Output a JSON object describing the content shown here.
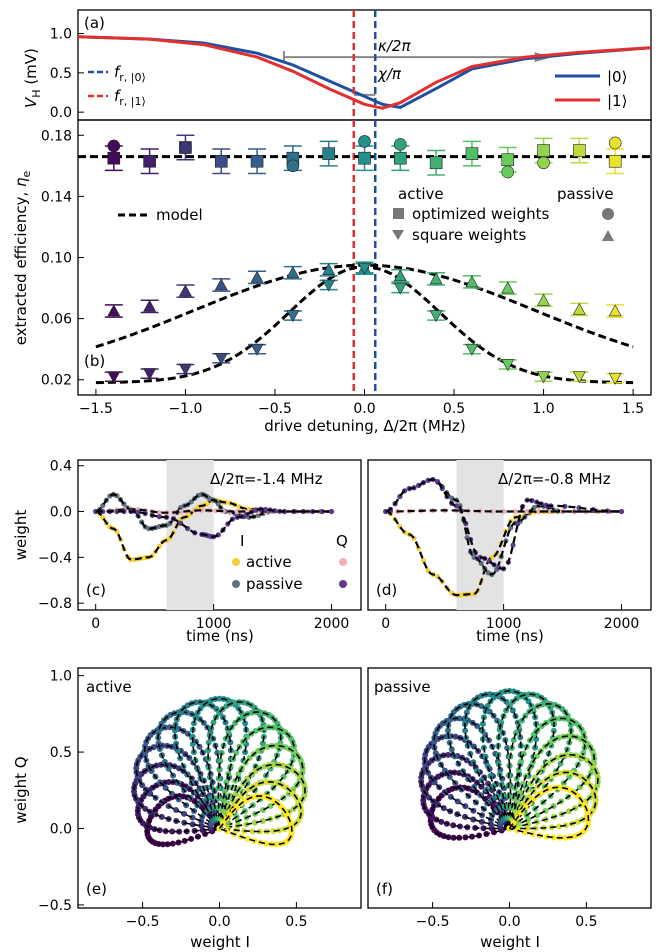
{
  "panels": {
    "a": {
      "letter": "(a)",
      "ylabel": "V_H (mV)",
      "yticks": [
        "0.0",
        "0.5",
        "1.0"
      ],
      "annotations": {
        "kappa": "κ/2π",
        "chi": "χ/π"
      },
      "legend_left": [
        "f_r,|0⟩",
        "f_r,|1⟩"
      ],
      "legend_right": [
        "|0⟩",
        "|1⟩"
      ]
    },
    "b": {
      "letter": "(b)",
      "ylabel": "extracted efficiency, η_e",
      "yticks": [
        "0.02",
        "0.06",
        "0.10",
        "0.14",
        "0.18"
      ],
      "xticks": [
        "−1.5",
        "−1.0",
        "−0.5",
        "0.0",
        "0.5",
        "1.0",
        "1.5"
      ],
      "xlabel": "drive detuning, Δ/2π (MHz)",
      "legend": {
        "model": "model",
        "active": "active",
        "passive": "passive",
        "optimized": "optimized weights",
        "square": "square weights"
      }
    },
    "c": {
      "letter": "(c)",
      "title": "Δ/2π=-1.4 MHz",
      "ylabel": "weight",
      "yticks": [
        "0.4",
        "0.0",
        "−0.4",
        "−0.8"
      ],
      "xticks": [
        "0",
        "1000",
        "2000"
      ],
      "xlabel": "time (ns)",
      "legend": {
        "I": "I",
        "Q": "Q",
        "active": "active",
        "passive": "passive"
      }
    },
    "d": {
      "letter": "(d)",
      "title": "Δ/2π=-0.8 MHz",
      "xticks": [
        "0",
        "1000",
        "2000"
      ],
      "xlabel": "time (ns)"
    },
    "e": {
      "letter": "(e)",
      "title": "active",
      "ylabel": "weight Q",
      "yticks": [
        "1.0",
        "0.5",
        "0.0",
        "−0.5"
      ],
      "xticks": [
        "−0.5",
        "0.0",
        "0.5"
      ],
      "xlabel": "weight I"
    },
    "f": {
      "letter": "(f)",
      "title": "passive",
      "xticks": [
        "−0.5",
        "0.0",
        "0.5"
      ],
      "xlabel": "weight I"
    }
  },
  "colors": {
    "blue": "#1f4fa0",
    "red": "#e03030",
    "grey": "#888888"
  },
  "chart_data": [
    {
      "id": "a",
      "type": "line",
      "xlim": [
        -1.6,
        1.6
      ],
      "ylim": [
        -0.1,
        1.3
      ],
      "vlines": [
        {
          "series": "f_r,|0⟩",
          "x": 0.06,
          "color": "#1f4fa0"
        },
        {
          "series": "f_r,|1⟩",
          "x": -0.06,
          "color": "#e03030"
        }
      ],
      "series": [
        {
          "name": "|0⟩",
          "color": "#1f4fa0",
          "x": [
            -1.6,
            -1.2,
            -0.9,
            -0.6,
            -0.4,
            -0.2,
            0.0,
            0.1,
            0.2,
            0.4,
            0.6,
            0.9,
            1.2,
            1.6
          ],
          "y": [
            0.96,
            0.93,
            0.88,
            0.75,
            0.6,
            0.4,
            0.2,
            0.1,
            0.06,
            0.3,
            0.55,
            0.68,
            0.75,
            0.82
          ]
        },
        {
          "name": "|1⟩",
          "color": "#e03030",
          "x": [
            -1.6,
            -1.2,
            -0.9,
            -0.6,
            -0.4,
            -0.2,
            0.0,
            0.1,
            0.2,
            0.4,
            0.6,
            0.9,
            1.2,
            1.6
          ],
          "y": [
            0.96,
            0.93,
            0.86,
            0.7,
            0.52,
            0.3,
            0.1,
            0.05,
            0.12,
            0.38,
            0.58,
            0.7,
            0.76,
            0.82
          ]
        }
      ]
    },
    {
      "id": "b",
      "type": "scatter",
      "xlim": [
        -1.6,
        1.6
      ],
      "ylim": [
        0.01,
        0.19
      ],
      "model_level": 0.166,
      "optimized_active": {
        "x": [
          -1.4,
          -1.2,
          -1.0,
          -0.8,
          -0.6,
          -0.4,
          -0.2,
          0.0,
          0.2,
          0.4,
          0.6,
          0.8,
          1.0,
          1.2,
          1.4
        ],
        "y": [
          0.165,
          0.163,
          0.172,
          0.163,
          0.163,
          0.165,
          0.168,
          0.165,
          0.165,
          0.162,
          0.168,
          0.164,
          0.17,
          0.17,
          0.163
        ]
      },
      "optimized_passive": {
        "x": [
          -1.4,
          -1.0,
          -0.4,
          0.0,
          0.2,
          0.8,
          1.0,
          1.4
        ],
        "y": [
          0.173,
          0.172,
          0.16,
          0.176,
          0.174,
          0.156,
          0.162,
          0.175
        ]
      },
      "square_active": {
        "x": [
          -1.4,
          -1.2,
          -1.0,
          -0.8,
          -0.6,
          -0.4,
          -0.2,
          0.0,
          0.2,
          0.4,
          0.6,
          0.8,
          1.0,
          1.2,
          1.4
        ],
        "y": [
          0.065,
          0.068,
          0.078,
          0.082,
          0.087,
          0.09,
          0.092,
          0.093,
          0.088,
          0.086,
          0.084,
          0.08,
          0.072,
          0.066,
          0.065
        ]
      },
      "square_passive": {
        "x": [
          -1.4,
          -1.2,
          -1.0,
          -0.8,
          -0.6,
          -0.4,
          -0.2,
          0.0,
          0.2,
          0.4,
          0.6,
          0.8,
          1.0,
          1.2,
          1.4
        ],
        "y": [
          0.022,
          0.024,
          0.027,
          0.034,
          0.04,
          0.062,
          0.082,
          0.093,
          0.08,
          0.062,
          0.04,
          0.03,
          0.022,
          0.022,
          0.021
        ]
      }
    },
    {
      "id": "c",
      "type": "line",
      "xlim": [
        -150,
        2250
      ],
      "ylim": [
        -0.86,
        0.45
      ],
      "shaded": [
        600,
        1000
      ],
      "series": [
        {
          "name": "active I",
          "color": "#f2d13a",
          "x": [
            0,
            150,
            300,
            450,
            600,
            750,
            900,
            1000,
            1100,
            1300,
            1500,
            2000
          ],
          "y": [
            0,
            -0.15,
            -0.42,
            -0.4,
            -0.25,
            -0.05,
            0.05,
            0.1,
            0.08,
            0.02,
            0,
            0
          ]
        },
        {
          "name": "passive I",
          "color": "#607080",
          "x": [
            0,
            150,
            300,
            450,
            600,
            750,
            900,
            1000,
            1100,
            1300,
            1500,
            2000
          ],
          "y": [
            0,
            0.15,
            0.02,
            -0.15,
            -0.12,
            0.05,
            0.15,
            0.1,
            0,
            -0.05,
            0,
            0
          ]
        },
        {
          "name": "active Q",
          "color": "#f0b0b8",
          "x": [
            0,
            300,
            600,
            900,
            1200,
            1500,
            2000
          ],
          "y": [
            0,
            0.02,
            -0.01,
            0.01,
            0,
            0,
            0
          ]
        },
        {
          "name": "passive Q",
          "color": "#5b3a90",
          "x": [
            0,
            300,
            600,
            900,
            1000,
            1200,
            1400,
            1600,
            2000
          ],
          "y": [
            0,
            0,
            -0.05,
            -0.2,
            -0.22,
            -0.05,
            0.02,
            0,
            0
          ]
        }
      ]
    },
    {
      "id": "d",
      "type": "line",
      "xlim": [
        -150,
        2250
      ],
      "ylim": [
        -0.86,
        0.45
      ],
      "shaded": [
        600,
        1000
      ],
      "series": [
        {
          "name": "active I",
          "color": "#f2d13a",
          "x": [
            0,
            200,
            400,
            600,
            750,
            900,
            1100,
            1300,
            1500,
            2000
          ],
          "y": [
            0,
            -0.2,
            -0.55,
            -0.73,
            -0.72,
            -0.4,
            -0.05,
            0,
            0,
            0
          ]
        },
        {
          "name": "passive I",
          "color": "#607080",
          "x": [
            0,
            200,
            400,
            600,
            750,
            900,
            1100,
            1300,
            1500,
            2000
          ],
          "y": [
            0,
            0.2,
            0.28,
            0.1,
            -0.4,
            -0.55,
            -0.1,
            0.05,
            0,
            0
          ]
        },
        {
          "name": "active Q",
          "color": "#f0b0b8",
          "x": [
            0,
            500,
            1000,
            1500,
            2000
          ],
          "y": [
            0,
            0.01,
            0,
            0,
            0
          ]
        },
        {
          "name": "passive Q",
          "color": "#5b3a90",
          "x": [
            0,
            200,
            400,
            600,
            800,
            1000,
            1200,
            1400,
            2000
          ],
          "y": [
            0,
            0.2,
            0.28,
            0.05,
            -0.4,
            -0.5,
            0.1,
            0.05,
            0
          ]
        }
      ]
    },
    {
      "id": "e",
      "type": "scatter",
      "xlim": [
        -0.92,
        0.92
      ],
      "ylim": [
        -0.52,
        1.05
      ],
      "description_series": "lissajous loops from origin, colored by detuning"
    },
    {
      "id": "f",
      "type": "scatter",
      "xlim": [
        -0.92,
        0.92
      ],
      "ylim": [
        -0.52,
        1.05
      ]
    }
  ]
}
